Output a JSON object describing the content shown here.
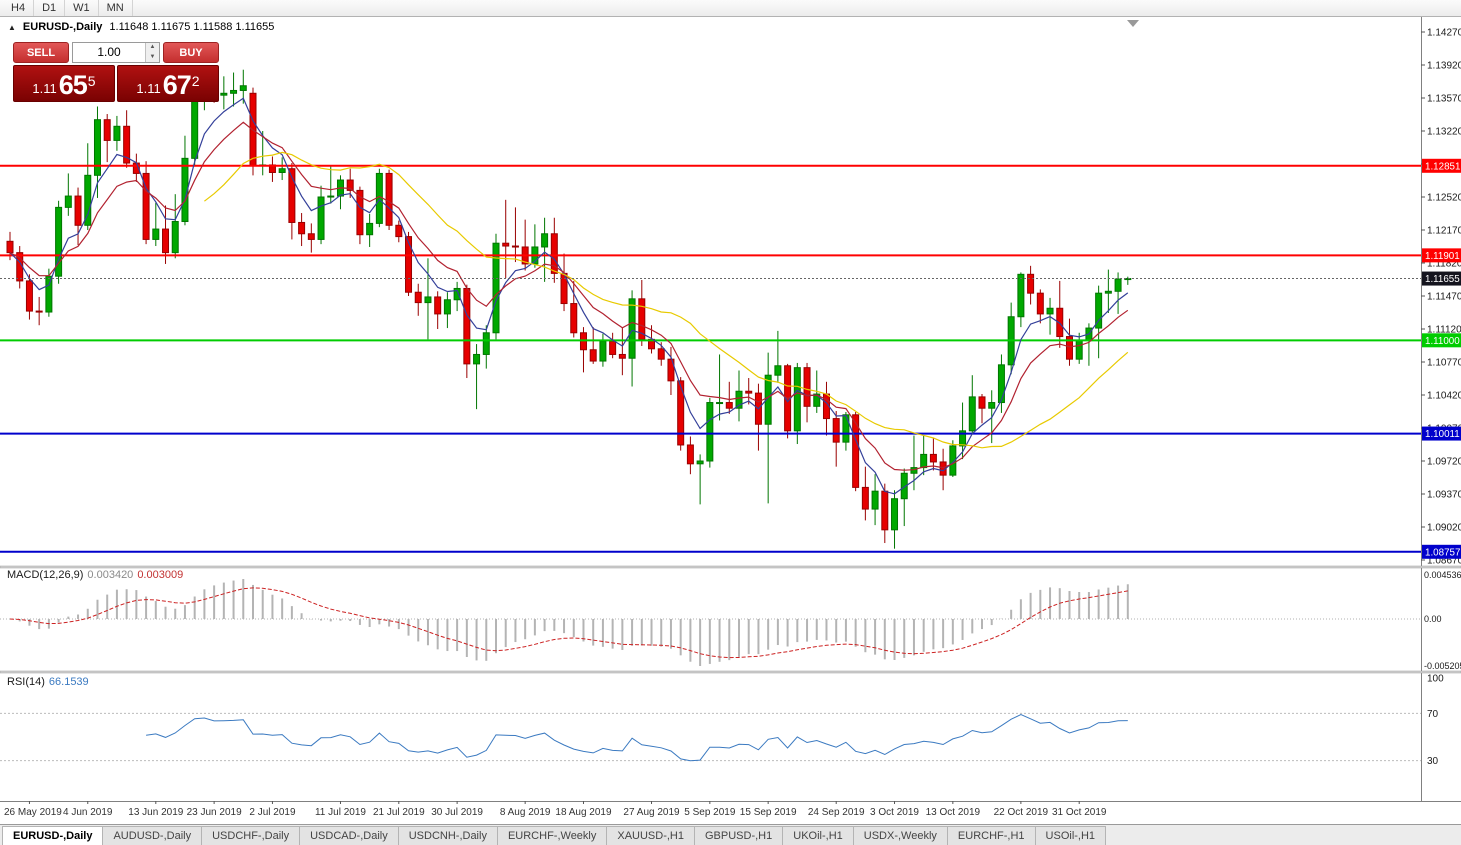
{
  "toolbar": {
    "timeframes": [
      "H4",
      "D1",
      "W1",
      "MN"
    ]
  },
  "chart": {
    "title": "EURUSD-,Daily",
    "ohlc": "1.11648 1.11675 1.11588 1.11655",
    "trade_panel": {
      "sell_label": "SELL",
      "buy_label": "BUY",
      "volume": "1.00",
      "bid": {
        "prefix": "1.11",
        "pips": "65",
        "point": "5"
      },
      "ask": {
        "prefix": "1.11",
        "pips": "67",
        "point": "2"
      }
    }
  },
  "indicators": {
    "macd": {
      "label": "MACD(12,26,9)",
      "value_main": "0.003420",
      "value_signal": "0.003009",
      "axis": [
        "0.004536",
        "0.00",
        "-0.005205"
      ],
      "fast": 12,
      "slow": 26,
      "signal": 9,
      "histogram_color": "#b4b4b4",
      "signal_color": "#cc2222"
    },
    "rsi": {
      "label": "RSI(14)",
      "value": "66.1539",
      "axis": [
        "100",
        "70",
        "30"
      ],
      "levels": [
        70,
        30
      ],
      "period": 14,
      "line_color": "#3b7ac1"
    }
  },
  "price_axis": {
    "labels": [
      "1.14270",
      "1.13920",
      "1.13570",
      "1.13220",
      "1.12870",
      "1.12520",
      "1.12170",
      "1.11820",
      "1.11470",
      "1.11120",
      "1.10770",
      "1.10420",
      "1.10070",
      "1.09720",
      "1.09370",
      "1.09020",
      "1.08670"
    ]
  },
  "chart_data": {
    "type": "candlestick",
    "symbol": "EURUSD",
    "timeframe": "Daily",
    "colors": {
      "bull": "#00a800",
      "bull_border": "#007600",
      "bear": "#e60000",
      "bear_border": "#990000"
    },
    "current_price": {
      "value": 1.11655,
      "label": "1.11655",
      "line_color": "#666666",
      "badge_color": "#14141e"
    },
    "levels": [
      {
        "price": 1.12851,
        "label": "1.12851",
        "color": "#ff0000"
      },
      {
        "price": 1.11901,
        "label": "1.11901",
        "color": "#ff0000"
      },
      {
        "price": 1.11,
        "label": "1.11000",
        "color": "#00cc00"
      },
      {
        "price": 1.10011,
        "label": "1.10011",
        "color": "#0000cc"
      },
      {
        "price": 1.08757,
        "label": "1.08757",
        "color": "#0000cc"
      }
    ],
    "moving_averages": [
      {
        "period": 5,
        "type": "ema",
        "color": "#34409a"
      },
      {
        "period": 10,
        "type": "ema",
        "color": "#b22230"
      },
      {
        "period": 21,
        "type": "sma",
        "color": "#e8ca00"
      }
    ],
    "date_labels": [
      {
        "text": "26 May 2019",
        "index": 2
      },
      {
        "text": "4 Jun 2019",
        "index": 8
      },
      {
        "text": "13 Jun 2019",
        "index": 15
      },
      {
        "text": "23 Jun 2019",
        "index": 21
      },
      {
        "text": "2 Jul 2019",
        "index": 27
      },
      {
        "text": "11 Jul 2019",
        "index": 34
      },
      {
        "text": "21 Jul 2019",
        "index": 40
      },
      {
        "text": "30 Jul 2019",
        "index": 46
      },
      {
        "text": "8 Aug 2019",
        "index": 53
      },
      {
        "text": "18 Aug 2019",
        "index": 59
      },
      {
        "text": "27 Aug 2019",
        "index": 66
      },
      {
        "text": "5 Sep 2019",
        "index": 72
      },
      {
        "text": "15 Sep 2019",
        "index": 78
      },
      {
        "text": "24 Sep 2019",
        "index": 85
      },
      {
        "text": "3 Oct 2019",
        "index": 91
      },
      {
        "text": "13 Oct 2019",
        "index": 97
      },
      {
        "text": "22 Oct 2019",
        "index": 104
      },
      {
        "text": "31 Oct 2019",
        "index": 110
      }
    ],
    "candles": [
      [
        1.1205,
        1.1215,
        1.1185,
        1.1193
      ],
      [
        1.1193,
        1.12,
        1.1155,
        1.1163
      ],
      [
        1.1163,
        1.117,
        1.1122,
        1.1131
      ],
      [
        1.1131,
        1.1146,
        1.1116,
        1.113
      ],
      [
        1.113,
        1.1176,
        1.1125,
        1.1168
      ],
      [
        1.1168,
        1.1248,
        1.116,
        1.1241
      ],
      [
        1.1241,
        1.1277,
        1.1232,
        1.1253
      ],
      [
        1.1253,
        1.1262,
        1.1201,
        1.1222
      ],
      [
        1.1222,
        1.1309,
        1.1217,
        1.1275
      ],
      [
        1.1275,
        1.1348,
        1.1251,
        1.1334
      ],
      [
        1.1334,
        1.134,
        1.1289,
        1.1312
      ],
      [
        1.1312,
        1.1338,
        1.1301,
        1.1327
      ],
      [
        1.1327,
        1.1344,
        1.1283,
        1.1288
      ],
      [
        1.1288,
        1.1298,
        1.1268,
        1.1277
      ],
      [
        1.1277,
        1.129,
        1.1202,
        1.1207
      ],
      [
        1.1207,
        1.1246,
        1.12,
        1.1218
      ],
      [
        1.1218,
        1.1243,
        1.1181,
        1.1193
      ],
      [
        1.1193,
        1.1255,
        1.1187,
        1.1226
      ],
      [
        1.1226,
        1.1317,
        1.1222,
        1.1293
      ],
      [
        1.1293,
        1.1379,
        1.1285,
        1.1369
      ],
      [
        1.1369,
        1.1386,
        1.1344,
        1.1378
      ],
      [
        1.1378,
        1.1388,
        1.1352,
        1.136
      ],
      [
        1.136,
        1.138,
        1.1345,
        1.1362
      ],
      [
        1.1362,
        1.1384,
        1.1348,
        1.1365
      ],
      [
        1.1365,
        1.1387,
        1.1351,
        1.137
      ],
      [
        1.1362,
        1.1368,
        1.1275,
        1.1285
      ],
      [
        1.1285,
        1.1322,
        1.1275,
        1.1286
      ],
      [
        1.1286,
        1.1295,
        1.1268,
        1.1278
      ],
      [
        1.1278,
        1.1294,
        1.127,
        1.1282
      ],
      [
        1.1282,
        1.1288,
        1.1207,
        1.1225
      ],
      [
        1.1225,
        1.1235,
        1.12,
        1.1213
      ],
      [
        1.1213,
        1.1224,
        1.1193,
        1.1207
      ],
      [
        1.1207,
        1.1264,
        1.1202,
        1.1252
      ],
      [
        1.1252,
        1.1285,
        1.1245,
        1.1253
      ],
      [
        1.1253,
        1.1275,
        1.1239,
        1.127
      ],
      [
        1.127,
        1.1282,
        1.1251,
        1.1259
      ],
      [
        1.1259,
        1.1263,
        1.1202,
        1.1212
      ],
      [
        1.1212,
        1.1234,
        1.1199,
        1.1224
      ],
      [
        1.1224,
        1.1282,
        1.122,
        1.1277
      ],
      [
        1.1277,
        1.1281,
        1.1217,
        1.1222
      ],
      [
        1.1222,
        1.1227,
        1.1204,
        1.121
      ],
      [
        1.121,
        1.1215,
        1.1147,
        1.1151
      ],
      [
        1.1151,
        1.116,
        1.1126,
        1.114
      ],
      [
        1.114,
        1.1187,
        1.1101,
        1.1146
      ],
      [
        1.1146,
        1.1152,
        1.1112,
        1.1128
      ],
      [
        1.1128,
        1.1151,
        1.1113,
        1.1143
      ],
      [
        1.1143,
        1.1162,
        1.1131,
        1.1155
      ],
      [
        1.1155,
        1.1159,
        1.106,
        1.1075
      ],
      [
        1.1075,
        1.1096,
        1.1027,
        1.1085
      ],
      [
        1.1085,
        1.1116,
        1.107,
        1.1108
      ],
      [
        1.1108,
        1.1213,
        1.1101,
        1.1203
      ],
      [
        1.1203,
        1.1249,
        1.1166,
        1.12
      ],
      [
        1.12,
        1.1241,
        1.1183,
        1.1199
      ],
      [
        1.1199,
        1.1228,
        1.1174,
        1.1181
      ],
      [
        1.1181,
        1.1223,
        1.1177,
        1.1199
      ],
      [
        1.1199,
        1.123,
        1.1162,
        1.1213
      ],
      [
        1.1213,
        1.123,
        1.1161,
        1.1171
      ],
      [
        1.1171,
        1.1192,
        1.1131,
        1.1139
      ],
      [
        1.1139,
        1.1163,
        1.1103,
        1.1108
      ],
      [
        1.1108,
        1.1114,
        1.1066,
        1.109
      ],
      [
        1.109,
        1.1114,
        1.1075,
        1.1078
      ],
      [
        1.1078,
        1.1107,
        1.1072,
        1.1099
      ],
      [
        1.1099,
        1.1108,
        1.1081,
        1.1085
      ],
      [
        1.1085,
        1.1113,
        1.1063,
        1.1081
      ],
      [
        1.1081,
        1.1153,
        1.1051,
        1.1144
      ],
      [
        1.1144,
        1.1164,
        1.1094,
        1.1101
      ],
      [
        1.1101,
        1.1116,
        1.1086,
        1.1091
      ],
      [
        1.1091,
        1.1098,
        1.1073,
        1.108
      ],
      [
        1.108,
        1.1093,
        1.1042,
        1.1057
      ],
      [
        1.1057,
        1.1061,
        1.0983,
        1.0989
      ],
      [
        1.0989,
        1.0998,
        1.0958,
        1.0969
      ],
      [
        1.0969,
        1.0979,
        1.0926,
        1.0972
      ],
      [
        1.0972,
        1.1039,
        1.0965,
        1.1034
      ],
      [
        1.1034,
        1.1085,
        1.1015,
        1.1034
      ],
      [
        1.1034,
        1.1056,
        1.1022,
        1.1028
      ],
      [
        1.1028,
        1.1068,
        1.1014,
        1.1046
      ],
      [
        1.1046,
        1.106,
        1.1032,
        1.1044
      ],
      [
        1.1044,
        1.1054,
        1.0983,
        1.1011
      ],
      [
        1.1011,
        1.1087,
        1.0927,
        1.1063
      ],
      [
        1.1063,
        1.111,
        1.1055,
        1.1073
      ],
      [
        1.1073,
        1.1075,
        1.0996,
        1.1004
      ],
      [
        1.1004,
        1.1076,
        1.099,
        1.1071
      ],
      [
        1.1071,
        1.1076,
        1.1013,
        1.103
      ],
      [
        1.103,
        1.1068,
        1.1023,
        1.1043
      ],
      [
        1.1043,
        1.1056,
        1.0999,
        1.1017
      ],
      [
        1.1017,
        1.1025,
        1.0966,
        1.0992
      ],
      [
        1.0992,
        1.1024,
        1.0983,
        1.1021
      ],
      [
        1.1021,
        1.1024,
        1.094,
        1.0944
      ],
      [
        1.0944,
        1.0966,
        1.0909,
        1.0921
      ],
      [
        1.0921,
        1.0958,
        1.0904,
        1.094
      ],
      [
        1.094,
        1.0948,
        1.0885,
        1.0899
      ],
      [
        1.0899,
        1.0941,
        1.0879,
        1.0932
      ],
      [
        1.0932,
        1.0964,
        1.0903,
        1.0959
      ],
      [
        1.0959,
        1.0999,
        1.0941,
        1.0965
      ],
      [
        1.0965,
        1.0999,
        1.0957,
        1.0979
      ],
      [
        1.0979,
        1.0996,
        1.0962,
        1.0971
      ],
      [
        1.0971,
        1.0985,
        1.0941,
        1.0957
      ],
      [
        1.0957,
        1.0994,
        1.0955,
        1.0988
      ],
      [
        1.0988,
        1.1034,
        1.0974,
        1.1004
      ],
      [
        1.1004,
        1.1063,
        1.1002,
        1.104
      ],
      [
        1.104,
        1.1043,
        1.1012,
        1.1028
      ],
      [
        1.1028,
        1.1047,
        1.0991,
        1.1034
      ],
      [
        1.1034,
        1.1085,
        1.1023,
        1.1074
      ],
      [
        1.1074,
        1.114,
        1.1064,
        1.1125
      ],
      [
        1.1125,
        1.1172,
        1.1114,
        1.117
      ],
      [
        1.117,
        1.1179,
        1.1138,
        1.115
      ],
      [
        1.115,
        1.1154,
        1.1118,
        1.1128
      ],
      [
        1.1128,
        1.1145,
        1.1106,
        1.1134
      ],
      [
        1.1134,
        1.1163,
        1.1092,
        1.1104
      ],
      [
        1.1104,
        1.1123,
        1.1073,
        1.108
      ],
      [
        1.108,
        1.1108,
        1.1075,
        1.11
      ],
      [
        1.11,
        1.1118,
        1.1073,
        1.1113
      ],
      [
        1.1113,
        1.1158,
        1.1081,
        1.115
      ],
      [
        1.115,
        1.1175,
        1.1129,
        1.1152
      ],
      [
        1.1152,
        1.1172,
        1.1128,
        1.1165
      ],
      [
        1.11648,
        1.11675,
        1.11588,
        1.11655
      ]
    ]
  },
  "window": {
    "tabs": [
      {
        "label": "EURUSD-,Daily",
        "active": true
      },
      {
        "label": "AUDUSD-,Daily",
        "active": false
      },
      {
        "label": "USDCHF-,Daily",
        "active": false
      },
      {
        "label": "USDCAD-,Daily",
        "active": false
      },
      {
        "label": "USDCNH-,Daily",
        "active": false
      },
      {
        "label": "EURCHF-,Weekly",
        "active": false
      },
      {
        "label": "XAUUSD-,H1",
        "active": false
      },
      {
        "label": "GBPUSD-,H1",
        "active": false
      },
      {
        "label": "UKOil-,H1",
        "active": false
      },
      {
        "label": "USDX-,Weekly",
        "active": false
      },
      {
        "label": "EURCHF-,H1",
        "active": false
      },
      {
        "label": "USOil-,H1",
        "active": false
      }
    ]
  }
}
